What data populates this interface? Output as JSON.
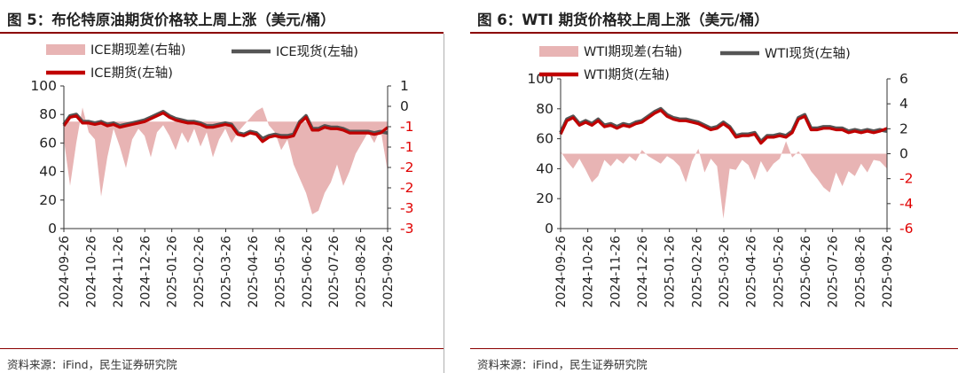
{
  "colors": {
    "accent_rule": "#8b0000",
    "spread_fill": "#e8b4b4",
    "spot_line": "#555555",
    "futures_line": "#c00000",
    "negative_tick": "#e00000"
  },
  "left": {
    "title": "图 5：布伦特原油期货价格较上周上涨（美元/桶）",
    "source": "资料来源：iFind，民生证券研究院",
    "chart_data": {
      "type": "line",
      "title": "图 5：布伦特原油期货价格较上周上涨（美元/桶）",
      "x_tick_labels": [
        "2024-09-26",
        "2024-10-26",
        "2024-11-26",
        "2024-12-26",
        "2025-01-26",
        "2025-02-26",
        "2025-03-26",
        "2025-04-26",
        "2025-05-26",
        "2025-06-26",
        "2025-07-26",
        "2025-08-26",
        "2025-09-26"
      ],
      "x_range": [
        "2024-09-26",
        "2025-09-26"
      ],
      "left_axis": {
        "ticks": [
          "0",
          "20",
          "40",
          "60",
          "80",
          "100"
        ],
        "range": [
          0,
          100
        ]
      },
      "right_axis": {
        "ticks": [
          "1",
          "0",
          "-1",
          "-1",
          "-2",
          "-2",
          "-3",
          "-3"
        ],
        "range": [
          -3,
          1
        ]
      },
      "legend": {
        "placement": "top",
        "entries": [
          "ICE期现差(右轴)",
          "ICE现货(左轴)",
          "ICE期货(左轴)"
        ]
      },
      "series": [
        {
          "name": "ICE期现差(右轴)",
          "axis": "right",
          "kind": "area",
          "x": [
            "2024-09-26",
            "2024-10-03",
            "2024-10-10",
            "2024-10-17",
            "2024-10-24",
            "2024-10-31",
            "2024-11-07",
            "2024-11-14",
            "2024-11-21",
            "2024-11-28",
            "2024-12-05",
            "2024-12-12",
            "2024-12-19",
            "2024-12-26",
            "2025-01-02",
            "2025-01-09",
            "2025-01-16",
            "2025-01-23",
            "2025-01-30",
            "2025-02-06",
            "2025-02-13",
            "2025-02-20",
            "2025-02-27",
            "2025-03-06",
            "2025-03-13",
            "2025-03-20",
            "2025-03-27",
            "2025-04-03",
            "2025-04-10",
            "2025-04-17",
            "2025-04-24",
            "2025-05-01",
            "2025-05-08",
            "2025-05-15",
            "2025-05-22",
            "2025-05-29",
            "2025-06-05",
            "2025-06-12",
            "2025-06-19",
            "2025-06-26",
            "2025-07-03",
            "2025-07-10",
            "2025-07-17",
            "2025-07-24",
            "2025-07-31",
            "2025-08-07",
            "2025-08-14",
            "2025-08-21",
            "2025-08-28",
            "2025-09-04",
            "2025-09-11",
            "2025-09-18",
            "2025-09-26"
          ],
          "values": [
            -0.5,
            -1.8,
            -0.6,
            0.4,
            -0.3,
            -0.5,
            -2.1,
            -1.0,
            -0.2,
            -0.7,
            -1.3,
            -0.5,
            -0.2,
            -0.4,
            -1.0,
            -0.3,
            -0.1,
            -0.4,
            -0.8,
            -0.3,
            -0.6,
            -0.2,
            -0.7,
            -0.3,
            -1.0,
            -0.5,
            -0.2,
            -0.6,
            -0.3,
            -0.1,
            0.1,
            0.3,
            0.4,
            -0.1,
            -0.3,
            -0.8,
            -0.5,
            -1.2,
            -1.6,
            -2.0,
            -2.6,
            -2.5,
            -2.0,
            -1.7,
            -1.2,
            -1.8,
            -1.4,
            -0.9,
            -0.6,
            -0.3,
            -0.6,
            -0.2,
            -1.4
          ]
        },
        {
          "name": "ICE现货(左轴)",
          "axis": "left",
          "kind": "line",
          "x": [
            "2024-09-26",
            "2024-10-03",
            "2024-10-10",
            "2024-10-17",
            "2024-10-24",
            "2024-10-31",
            "2024-11-07",
            "2024-11-14",
            "2024-11-21",
            "2024-11-28",
            "2024-12-05",
            "2024-12-12",
            "2024-12-19",
            "2024-12-26",
            "2025-01-02",
            "2025-01-09",
            "2025-01-16",
            "2025-01-23",
            "2025-01-30",
            "2025-02-06",
            "2025-02-13",
            "2025-02-20",
            "2025-02-27",
            "2025-03-06",
            "2025-03-13",
            "2025-03-20",
            "2025-03-27",
            "2025-04-03",
            "2025-04-10",
            "2025-04-17",
            "2025-04-24",
            "2025-05-01",
            "2025-05-08",
            "2025-05-15",
            "2025-05-22",
            "2025-05-29",
            "2025-06-05",
            "2025-06-12",
            "2025-06-19",
            "2025-06-26",
            "2025-07-03",
            "2025-07-10",
            "2025-07-17",
            "2025-07-24",
            "2025-07-31",
            "2025-08-07",
            "2025-08-14",
            "2025-08-21",
            "2025-08-28",
            "2025-09-04",
            "2025-09-11",
            "2025-09-18",
            "2025-09-26"
          ],
          "values": [
            73,
            79,
            80,
            75,
            75,
            74,
            75,
            73,
            74,
            72,
            73,
            74,
            75,
            76,
            78,
            80,
            82,
            79,
            77,
            76,
            75,
            75,
            74,
            72,
            72,
            73,
            74,
            73,
            67,
            66,
            68,
            67,
            63,
            65,
            66,
            65,
            65,
            66,
            75,
            79,
            70,
            70,
            72,
            71,
            71,
            70,
            68,
            68,
            68,
            68,
            67,
            68,
            67
          ]
        },
        {
          "name": "ICE期货(左轴)",
          "axis": "left",
          "kind": "line",
          "x": [
            "2024-09-26",
            "2024-10-03",
            "2024-10-10",
            "2024-10-17",
            "2024-10-24",
            "2024-10-31",
            "2024-11-07",
            "2024-11-14",
            "2024-11-21",
            "2024-11-28",
            "2024-12-05",
            "2024-12-12",
            "2024-12-19",
            "2024-12-26",
            "2025-01-02",
            "2025-01-09",
            "2025-01-16",
            "2025-01-23",
            "2025-01-30",
            "2025-02-06",
            "2025-02-13",
            "2025-02-20",
            "2025-02-27",
            "2025-03-06",
            "2025-03-13",
            "2025-03-20",
            "2025-03-27",
            "2025-04-03",
            "2025-04-10",
            "2025-04-17",
            "2025-04-24",
            "2025-05-01",
            "2025-05-08",
            "2025-05-15",
            "2025-05-22",
            "2025-05-29",
            "2025-06-05",
            "2025-06-12",
            "2025-06-19",
            "2025-06-26",
            "2025-07-03",
            "2025-07-10",
            "2025-07-17",
            "2025-07-24",
            "2025-07-31",
            "2025-08-07",
            "2025-08-14",
            "2025-08-21",
            "2025-08-28",
            "2025-09-04",
            "2025-09-11",
            "2025-09-18",
            "2025-09-26"
          ],
          "values": [
            72,
            78,
            79,
            74,
            74,
            73,
            74,
            72,
            73,
            71,
            72,
            73,
            74,
            75,
            77,
            79,
            81,
            78,
            76,
            75,
            74,
            74,
            73,
            71,
            71,
            72,
            73,
            72,
            66,
            65,
            67,
            66,
            61,
            64,
            65,
            64,
            64,
            65,
            74,
            78,
            69,
            69,
            71,
            70,
            70,
            69,
            67,
            67,
            67,
            67,
            66,
            67,
            71
          ]
        }
      ]
    }
  },
  "right": {
    "title": "图 6：WTI 期货价格较上周上涨（美元/桶）",
    "source": "资料来源：iFind，民生证券研究院",
    "chart_data": {
      "type": "line",
      "title": "图 6：WTI 期货价格较上周上涨（美元/桶）",
      "x_tick_labels": [
        "2024-09-26",
        "2024-10-26",
        "2024-11-26",
        "2024-12-26",
        "2025-01-26",
        "2025-02-26",
        "2025-03-26",
        "2025-04-26",
        "2025-05-26",
        "2025-06-26",
        "2025-07-26",
        "2025-08-26",
        "2025-09-26"
      ],
      "x_range": [
        "2024-09-26",
        "2025-09-26"
      ],
      "left_axis": {
        "ticks": [
          "0",
          "20",
          "40",
          "60",
          "80",
          "100"
        ],
        "range": [
          0,
          100
        ]
      },
      "right_axis": {
        "ticks": [
          "6",
          "4",
          "2",
          "0",
          "-2",
          "-4",
          "-6"
        ],
        "range": [
          -6,
          6
        ]
      },
      "legend": {
        "placement": "top",
        "entries": [
          "WTI期现差(右轴)",
          "WTI现货(左轴)",
          "WTI期货(左轴)"
        ]
      },
      "series": [
        {
          "name": "WTI期现差(右轴)",
          "axis": "right",
          "kind": "area",
          "x": [
            "2024-09-26",
            "2024-10-03",
            "2024-10-10",
            "2024-10-17",
            "2024-10-24",
            "2024-10-31",
            "2024-11-07",
            "2024-11-14",
            "2024-11-21",
            "2024-11-28",
            "2024-12-05",
            "2024-12-12",
            "2024-12-19",
            "2024-12-26",
            "2025-01-02",
            "2025-01-09",
            "2025-01-16",
            "2025-01-23",
            "2025-01-30",
            "2025-02-06",
            "2025-02-13",
            "2025-02-20",
            "2025-02-27",
            "2025-03-06",
            "2025-03-13",
            "2025-03-20",
            "2025-03-27",
            "2025-04-03",
            "2025-04-10",
            "2025-04-17",
            "2025-04-24",
            "2025-05-01",
            "2025-05-08",
            "2025-05-15",
            "2025-05-22",
            "2025-05-29",
            "2025-06-05",
            "2025-06-12",
            "2025-06-19",
            "2025-06-26",
            "2025-07-03",
            "2025-07-10",
            "2025-07-17",
            "2025-07-24",
            "2025-07-31",
            "2025-08-07",
            "2025-08-14",
            "2025-08-21",
            "2025-08-28",
            "2025-09-04",
            "2025-09-11",
            "2025-09-18",
            "2025-09-26"
          ],
          "values": [
            0.2,
            -0.6,
            -1.2,
            -0.4,
            -1.3,
            -2.3,
            -1.8,
            -0.5,
            -1.0,
            -0.4,
            -0.8,
            -0.2,
            -0.6,
            0.3,
            -0.2,
            -0.5,
            -0.8,
            -0.2,
            -0.5,
            -1.0,
            -2.3,
            -0.6,
            0.4,
            -1.5,
            -0.4,
            -1.0,
            -5.2,
            -1.2,
            -1.3,
            -0.5,
            -0.9,
            -2.1,
            -0.6,
            -1.5,
            -0.8,
            -0.4,
            1.0,
            -0.3,
            0.2,
            -0.5,
            -1.4,
            -2.0,
            -2.7,
            -3.1,
            -1.5,
            -2.6,
            -1.4,
            -1.8,
            -0.8,
            -1.5,
            -0.5,
            -0.6,
            -1.2
          ]
        },
        {
          "name": "WTI现货(左轴)",
          "axis": "left",
          "kind": "line",
          "x": [
            "2024-09-26",
            "2024-10-03",
            "2024-10-10",
            "2024-10-17",
            "2024-10-24",
            "2024-10-31",
            "2024-11-07",
            "2024-11-14",
            "2024-11-21",
            "2024-11-28",
            "2024-12-05",
            "2024-12-12",
            "2024-12-19",
            "2024-12-26",
            "2025-01-02",
            "2025-01-09",
            "2025-01-16",
            "2025-01-23",
            "2025-01-30",
            "2025-02-06",
            "2025-02-13",
            "2025-02-20",
            "2025-02-27",
            "2025-03-06",
            "2025-03-13",
            "2025-03-20",
            "2025-03-27",
            "2025-04-03",
            "2025-04-10",
            "2025-04-17",
            "2025-04-24",
            "2025-05-01",
            "2025-05-08",
            "2025-05-15",
            "2025-05-22",
            "2025-05-29",
            "2025-06-05",
            "2025-06-12",
            "2025-06-19",
            "2025-06-26",
            "2025-07-03",
            "2025-07-10",
            "2025-07-17",
            "2025-07-24",
            "2025-07-31",
            "2025-08-07",
            "2025-08-14",
            "2025-08-21",
            "2025-08-28",
            "2025-09-04",
            "2025-09-11",
            "2025-09-18",
            "2025-09-26"
          ],
          "values": [
            64,
            73,
            75,
            70,
            72,
            70,
            73,
            69,
            70,
            68,
            70,
            69,
            71,
            72,
            75,
            78,
            80,
            76,
            74,
            73,
            73,
            72,
            71,
            69,
            67,
            68,
            71,
            68,
            62,
            63,
            63,
            64,
            58,
            62,
            62,
            63,
            62,
            65,
            74,
            76,
            67,
            67,
            68,
            68,
            67,
            67,
            65,
            66,
            65,
            66,
            65,
            66,
            65
          ]
        },
        {
          "name": "WTI期货(左轴)",
          "axis": "left",
          "kind": "line",
          "x": [
            "2024-09-26",
            "2024-10-03",
            "2024-10-10",
            "2024-10-17",
            "2024-10-24",
            "2024-10-31",
            "2024-11-07",
            "2024-11-14",
            "2024-11-21",
            "2024-11-28",
            "2024-12-05",
            "2024-12-12",
            "2024-12-19",
            "2024-12-26",
            "2025-01-02",
            "2025-01-09",
            "2025-01-16",
            "2025-01-23",
            "2025-01-30",
            "2025-02-06",
            "2025-02-13",
            "2025-02-20",
            "2025-02-27",
            "2025-03-06",
            "2025-03-13",
            "2025-03-20",
            "2025-03-27",
            "2025-04-03",
            "2025-04-10",
            "2025-04-17",
            "2025-04-24",
            "2025-05-01",
            "2025-05-08",
            "2025-05-15",
            "2025-05-22",
            "2025-05-29",
            "2025-06-05",
            "2025-06-12",
            "2025-06-19",
            "2025-06-26",
            "2025-07-03",
            "2025-07-10",
            "2025-07-17",
            "2025-07-24",
            "2025-07-31",
            "2025-08-07",
            "2025-08-14",
            "2025-08-21",
            "2025-08-28",
            "2025-09-04",
            "2025-09-11",
            "2025-09-18",
            "2025-09-26"
          ],
          "values": [
            63,
            72,
            74,
            69,
            71,
            69,
            72,
            68,
            69,
            67,
            69,
            68,
            70,
            71,
            74,
            77,
            79,
            75,
            73,
            72,
            72,
            71,
            70,
            68,
            66,
            67,
            70,
            67,
            61,
            62,
            62,
            63,
            57,
            61,
            61,
            62,
            61,
            64,
            73,
            75,
            66,
            66,
            67,
            67,
            66,
            66,
            64,
            65,
            64,
            65,
            64,
            65,
            67
          ]
        }
      ]
    }
  }
}
